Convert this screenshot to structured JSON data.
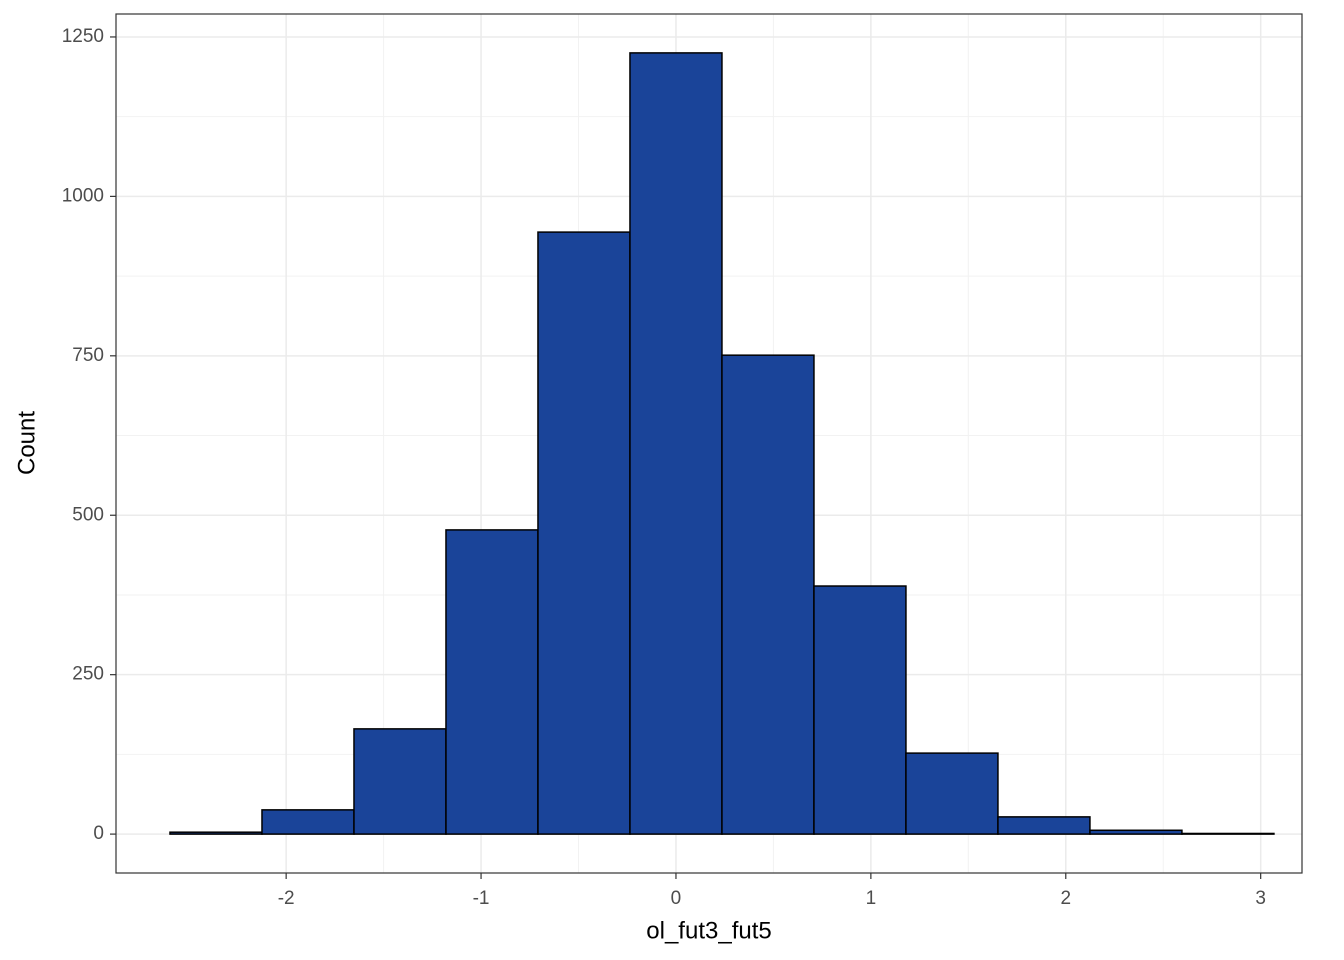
{
  "chart_data": {
    "type": "histogram",
    "x_label": "ol_fut3_fut5",
    "y_label": "Count",
    "bins": [
      -2.596,
      -2.124,
      -1.652,
      -1.18,
      -0.708,
      -0.236,
      0.236,
      0.708,
      1.18,
      1.652,
      2.124,
      2.596,
      3.068
    ],
    "counts": [
      3,
      38,
      165,
      477,
      944,
      1225,
      751,
      389,
      127,
      27,
      6,
      1
    ],
    "color": "#1a4499",
    "edge_color": "#000000",
    "xlim": [
      -2.873,
      3.212
    ],
    "xticks": [
      -2,
      -1,
      0,
      1,
      2,
      3
    ],
    "ylim": [
      -61,
      1286
    ],
    "yticks": [
      0,
      250,
      500,
      750,
      1000,
      1250
    ],
    "grid": true
  }
}
